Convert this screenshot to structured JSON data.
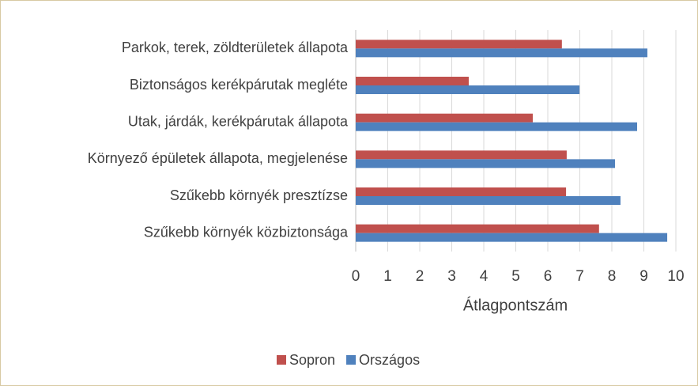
{
  "chart_data": {
    "type": "hbar",
    "categories": [
      "Parkok, terek, zöldterületek állapota",
      "Biztonságos kerékpárutak megléte",
      "Utak, járdák, kerékpárutak állapota",
      "Környező épületek állapota, megjelenése",
      "Szűkebb környék presztízse",
      "Szűkebb környék közbiztonsága"
    ],
    "series": [
      {
        "name": "Sopron",
        "color": "#c0504d",
        "values": [
          6.44,
          3.53,
          5.53,
          6.59,
          6.57,
          7.6
        ]
      },
      {
        "name": "Országos",
        "color": "#4f81bd",
        "values": [
          9.11,
          6.99,
          8.79,
          8.1,
          8.27,
          9.73
        ]
      }
    ],
    "xlabel": "Átlagpontszám",
    "xlim": [
      0,
      10
    ],
    "xticks": [
      0,
      1,
      2,
      3,
      4,
      5,
      6,
      7,
      8,
      9,
      10
    ],
    "grid": true,
    "legend": "bottom"
  }
}
